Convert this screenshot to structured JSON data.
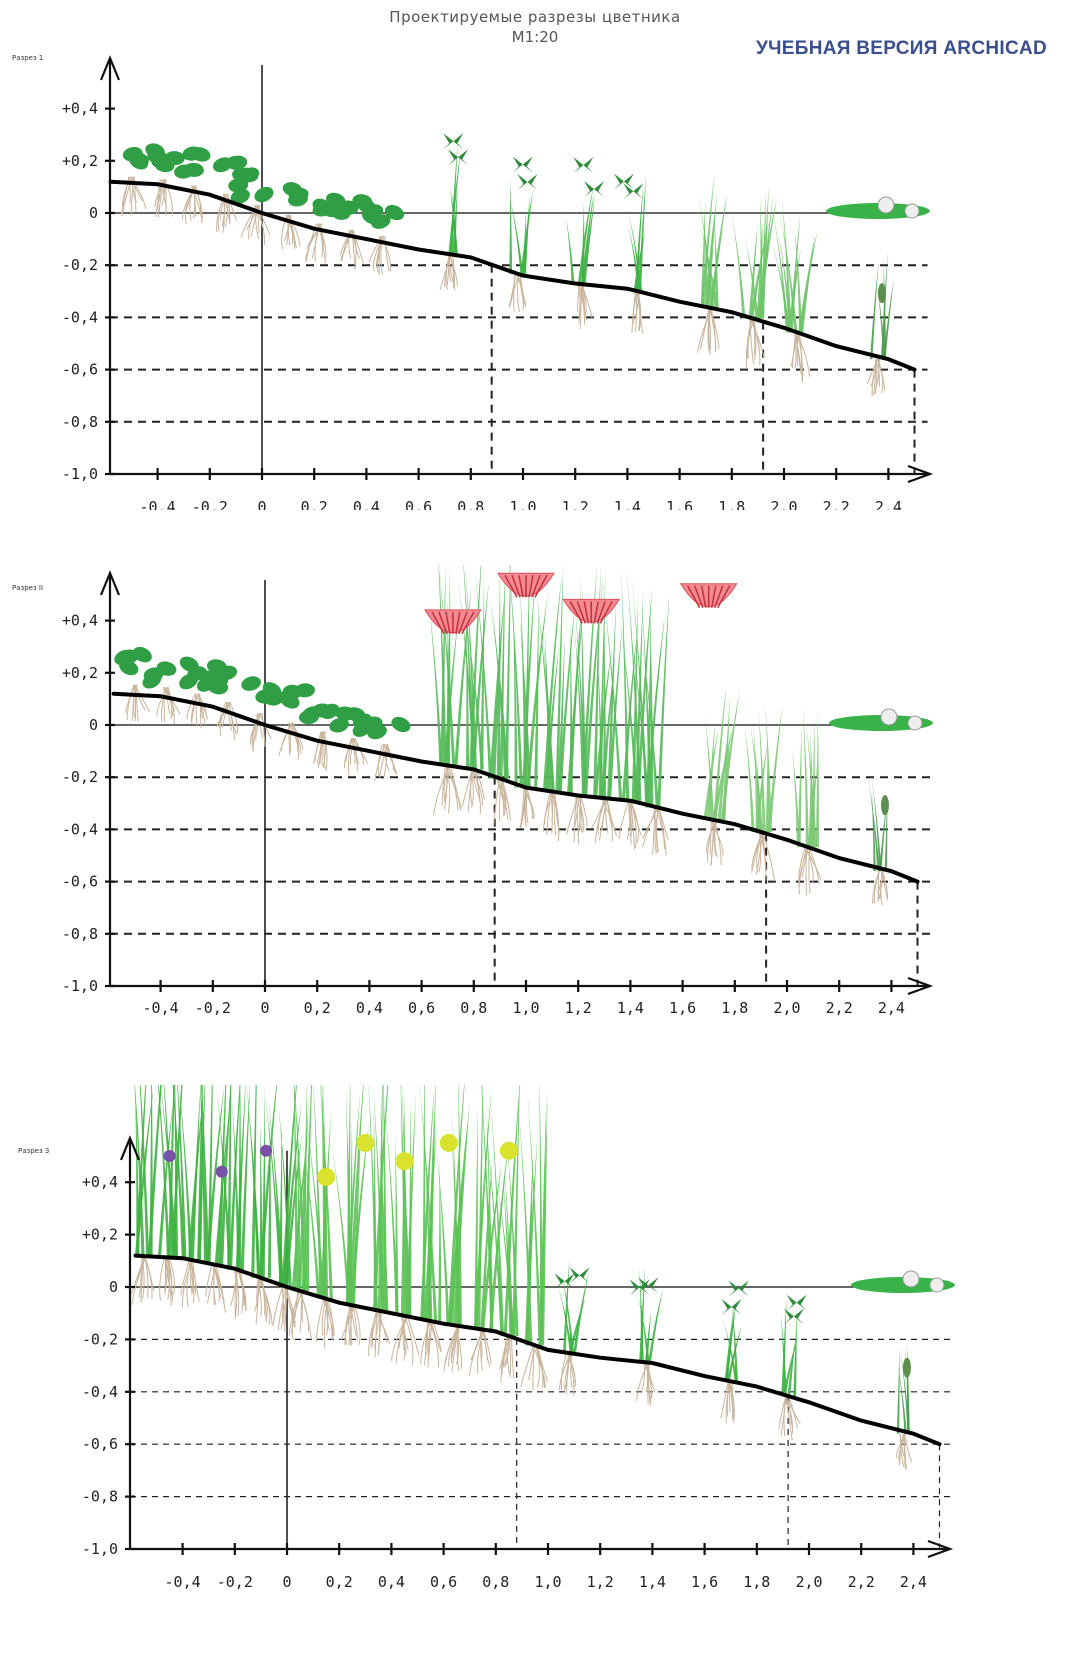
{
  "title": "Проектируемые разрезы цветника",
  "scale": "М1:20",
  "watermark": "УЧЕБНАЯ ВЕРСИЯ ARCHICAD",
  "sections": [
    {
      "label": "Разрез 1",
      "plants": "lowgreen+grass"
    },
    {
      "label": "Разрез II",
      "plants": "lowgreen+tallgrass+redflowers"
    },
    {
      "label": "Разрез 3",
      "plants": "tallgrass+iris+yellow"
    }
  ],
  "axes": {
    "y_ticks": [
      "+0,4",
      "+0,2",
      "0",
      "-0,2",
      "-0,4",
      "-0,6",
      "-0,8",
      "-1,0"
    ],
    "x_ticks": [
      "-0,4",
      "-0,2",
      "0",
      "0,2",
      "0,4",
      "0,6",
      "0,8",
      "1,0",
      "1,2",
      "1,4",
      "1,6",
      "1,8",
      "2,0",
      "2,2",
      "2,4"
    ]
  },
  "profile": [
    [
      -0.58,
      0.12
    ],
    [
      -0.4,
      0.11
    ],
    [
      -0.2,
      0.07
    ],
    [
      0,
      0.0
    ],
    [
      0.2,
      -0.06
    ],
    [
      0.4,
      -0.1
    ],
    [
      0.6,
      -0.14
    ],
    [
      0.8,
      -0.17
    ],
    [
      1.0,
      -0.24
    ],
    [
      1.2,
      -0.27
    ],
    [
      1.4,
      -0.29
    ],
    [
      1.6,
      -0.34
    ],
    [
      1.8,
      -0.38
    ],
    [
      2.0,
      -0.44
    ],
    [
      2.2,
      -0.51
    ],
    [
      2.4,
      -0.56
    ],
    [
      2.5,
      -0.6
    ]
  ],
  "drop_lines_x": [
    0.88,
    1.92,
    2.5
  ],
  "colors": {
    "grass": "#3cb043",
    "lightgreen": "#8fd37a",
    "roots": "#c9b49c",
    "red": "#e0505a",
    "yellow": "#d9e22c",
    "purple": "#7a4fa8"
  }
}
